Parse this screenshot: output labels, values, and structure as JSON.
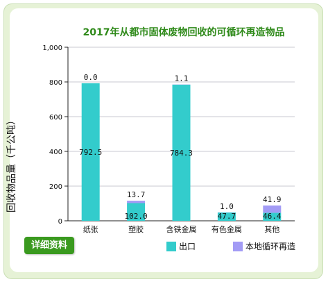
{
  "page": {
    "details_button": "详细资料"
  },
  "colors": {
    "export": "#33cccc",
    "local": "#a29bf5",
    "grid": "#c9c9d0",
    "axis": "#222222",
    "frame": "#e6f2d6",
    "button": "#3a9a1f"
  },
  "chart_data": {
    "type": "bar",
    "stacked": true,
    "title": "2017年从都市固体废物回收的可循环再造物品",
    "ylabel": "回收物品量（千公吨）",
    "xlabel": "",
    "ylim": [
      0,
      1000
    ],
    "yticks": [
      "0",
      "200",
      "400",
      "600",
      "800",
      "1,000"
    ],
    "grid": true,
    "legend_position": "bottom",
    "categories": [
      "纸张",
      "塑胶",
      "含铁金属",
      "有色金属",
      "其他"
    ],
    "series": [
      {
        "name": "出口",
        "values": [
          792.5,
          102.0,
          784.3,
          47.7,
          46.4
        ],
        "labels": [
          "792.5",
          "102.0",
          "784.3",
          "47.7",
          "46.4"
        ]
      },
      {
        "name": "本地循环再造",
        "values": [
          0.0,
          13.7,
          1.1,
          1.0,
          41.9
        ],
        "labels": [
          "0.0",
          "13.7",
          "1.1",
          "1.0",
          "41.9"
        ]
      }
    ]
  }
}
